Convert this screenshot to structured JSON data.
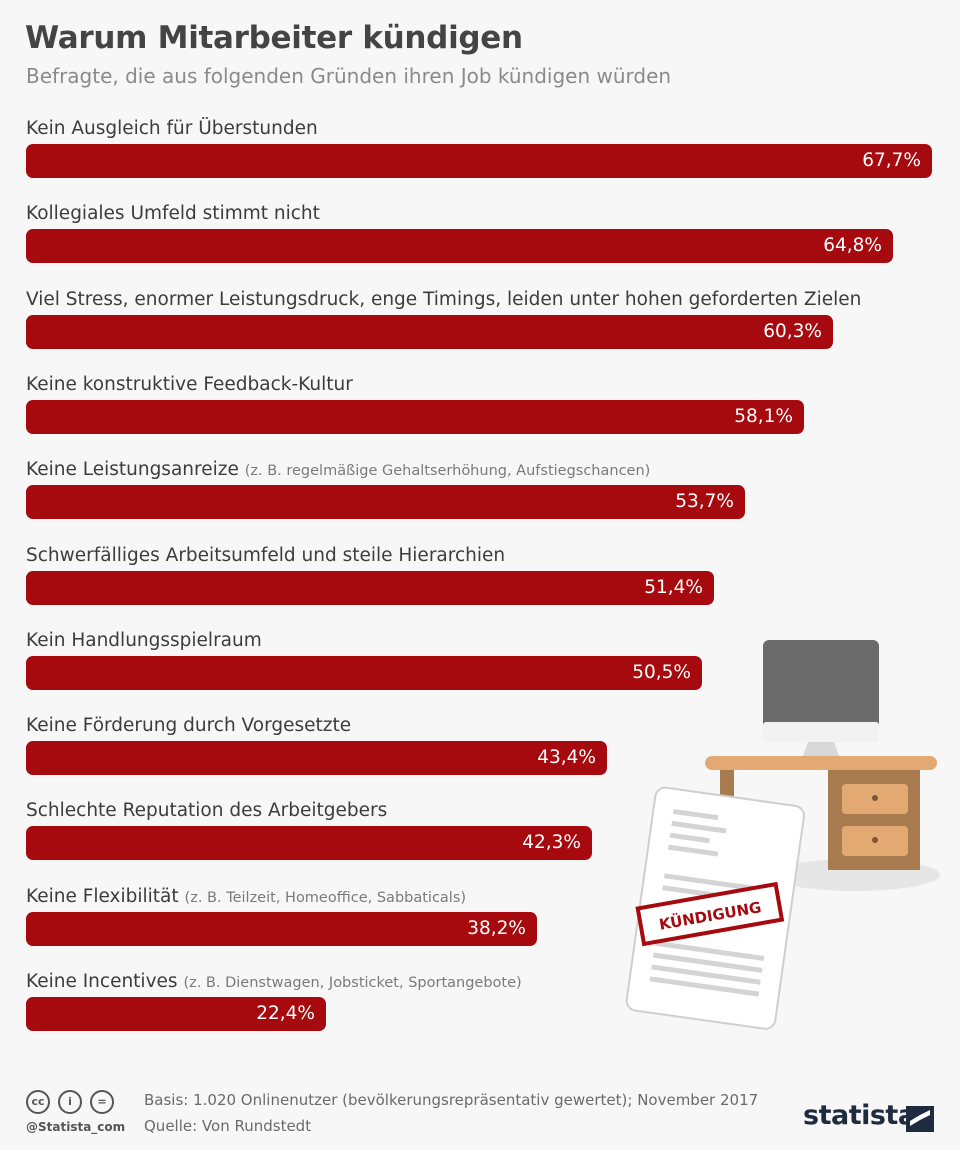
{
  "title": "Warum Mitarbeiter kündigen",
  "subtitle": "Befragte, die aus folgenden Gründen ihren Job kündigen würden",
  "chart_data": {
    "type": "bar",
    "orientation": "horizontal",
    "xlim": [
      0,
      67.7
    ],
    "bar_color": "#a60a0e",
    "categories": [
      {
        "label": "Kein Ausgleich für Überstunden",
        "note": "",
        "value": 67.7,
        "value_label": "67,7%"
      },
      {
        "label": "Kollegiales Umfeld stimmt nicht",
        "note": "",
        "value": 64.8,
        "value_label": "64,8%"
      },
      {
        "label": "Viel Stress, enormer Leistungsdruck, enge Timings, leiden unter hohen geforderten Zielen",
        "note": "",
        "value": 60.3,
        "value_label": "60,3%"
      },
      {
        "label": "Keine konstruktive Feedback-Kultur",
        "note": "",
        "value": 58.1,
        "value_label": "58,1%"
      },
      {
        "label": "Keine Leistungsanreize",
        "note": "(z. B. regelmäßige Gehaltserhöhung, Aufstiegschancen)",
        "value": 53.7,
        "value_label": "53,7%"
      },
      {
        "label": "Schwerfälliges Arbeitsumfeld und steile Hierarchien",
        "note": "",
        "value": 51.4,
        "value_label": "51,4%"
      },
      {
        "label": "Kein Handlungsspielraum",
        "note": "",
        "value": 50.5,
        "value_label": "50,5%"
      },
      {
        "label": "Keine Förderung durch Vorgesetzte",
        "note": "",
        "value": 43.4,
        "value_label": "43,4%"
      },
      {
        "label": "Schlechte Reputation des Arbeitgebers",
        "note": "",
        "value": 42.3,
        "value_label": "42,3%"
      },
      {
        "label": "Keine Flexibilität",
        "note": "(z. B. Teilzeit, Homeoffice, Sabbaticals)",
        "value": 38.2,
        "value_label": "38,2%"
      },
      {
        "label": "Keine Incentives",
        "note": "(z. B. Dienstwagen, Jobsticket, Sportangebote)",
        "value": 22.4,
        "value_label": "22,4%"
      }
    ]
  },
  "illustration": {
    "stamp_text": "KÜNDIGUNG"
  },
  "footer": {
    "cc_icons": [
      "cc",
      "i",
      "="
    ],
    "handle": "@Statista_com",
    "basis": "Basis: 1.020 Onlinenutzer (bevölkerungsrepräsentativ gewertet); November 2017",
    "source": "Quelle: Von Rundstedt",
    "logo": "statista"
  }
}
